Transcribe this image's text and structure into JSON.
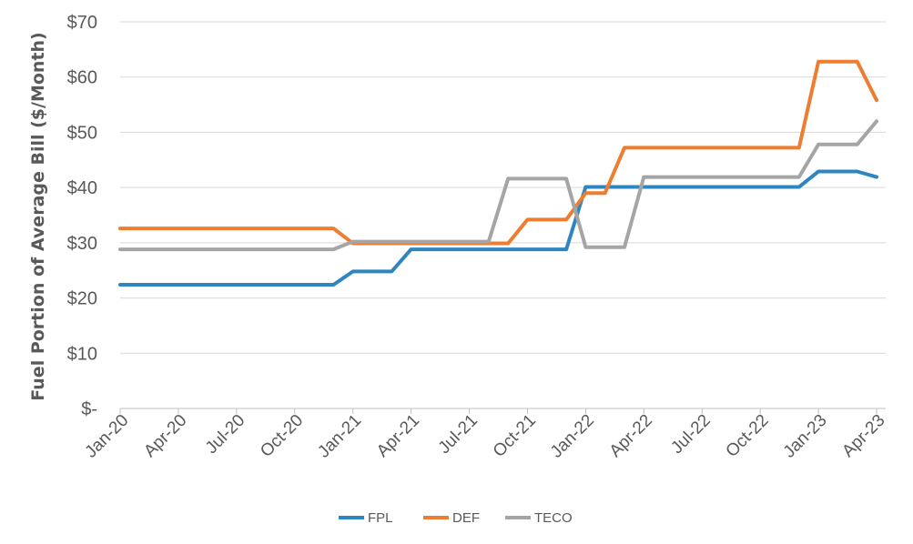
{
  "chart_data": {
    "type": "line",
    "title": "",
    "xlabel": "",
    "ylabel": "Fuel Portion of Average Bill ($/Month)",
    "ylim": [
      0,
      70
    ],
    "y_ticks": [
      "$-",
      "$10",
      "$20",
      "$30",
      "$40",
      "$50",
      "$60",
      "$70"
    ],
    "x_ticks": [
      "Jan-20",
      "Apr-20",
      "Jul-20",
      "Oct-20",
      "Jan-21",
      "Apr-21",
      "Jul-21",
      "Oct-21",
      "Jan-22",
      "Apr-22",
      "Jul-22",
      "Oct-22",
      "Jan-23",
      "Apr-23"
    ],
    "x_domain": [
      "2020-01",
      "2023-04"
    ],
    "grid": true,
    "legend_position": "bottom",
    "series": [
      {
        "name": "FPL",
        "color": "#2e86c1",
        "points": [
          [
            "2020-01",
            22.4
          ],
          [
            "2020-12",
            22.4
          ],
          [
            "2021-01",
            24.8
          ],
          [
            "2021-03",
            24.8
          ],
          [
            "2021-04",
            28.8
          ],
          [
            "2021-12",
            28.8
          ],
          [
            "2022-01",
            40.1
          ],
          [
            "2022-12",
            40.1
          ],
          [
            "2023-01",
            42.9
          ],
          [
            "2023-03",
            42.9
          ],
          [
            "2023-04",
            41.9
          ]
        ]
      },
      {
        "name": "DEF",
        "color": "#ed7d31",
        "points": [
          [
            "2020-01",
            32.6
          ],
          [
            "2020-12",
            32.6
          ],
          [
            "2021-01",
            29.9
          ],
          [
            "2021-09",
            29.9
          ],
          [
            "2021-10",
            34.2
          ],
          [
            "2021-12",
            34.2
          ],
          [
            "2022-01",
            39.0
          ],
          [
            "2022-02",
            39.0
          ],
          [
            "2022-03",
            47.2
          ],
          [
            "2022-12",
            47.2
          ],
          [
            "2023-01",
            62.8
          ],
          [
            "2023-03",
            62.8
          ],
          [
            "2023-04",
            55.8
          ]
        ]
      },
      {
        "name": "TECO",
        "color": "#a5a5a5",
        "points": [
          [
            "2020-01",
            28.8
          ],
          [
            "2020-12",
            28.8
          ],
          [
            "2021-01",
            30.2
          ],
          [
            "2021-08",
            30.2
          ],
          [
            "2021-09",
            41.6
          ],
          [
            "2021-12",
            41.6
          ],
          [
            "2022-01",
            29.2
          ],
          [
            "2022-03",
            29.2
          ],
          [
            "2022-04",
            41.9
          ],
          [
            "2022-12",
            41.9
          ],
          [
            "2023-01",
            47.8
          ],
          [
            "2023-03",
            47.8
          ],
          [
            "2023-04",
            52.0
          ]
        ]
      }
    ]
  }
}
